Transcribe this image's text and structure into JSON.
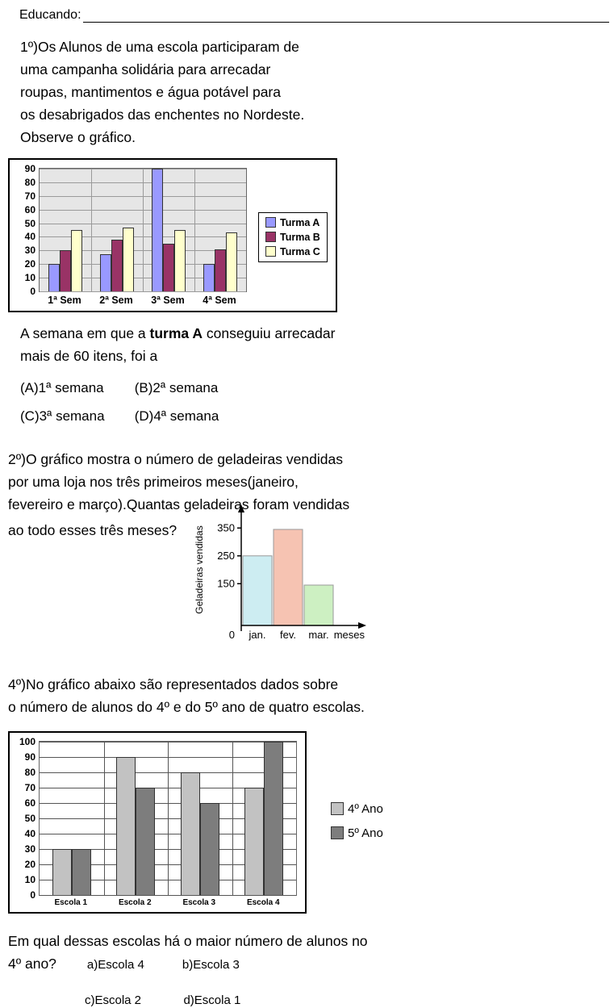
{
  "header": {
    "label": "Educando:"
  },
  "q1": {
    "text": "1º)Os Alunos de uma escola participaram de\numa campanha solidária para arrecadar\nroupas, mantimentos  e água potável para\nos desabrigados das enchentes no Nordeste.\nObserve o gráfico.",
    "question_prefix": "A semana em que a ",
    "question_bold": "turma A",
    "question_suffix": " conseguiu arrecadar\nmais de 60 itens, foi a",
    "options": [
      {
        "label": "(A)1ª semana"
      },
      {
        "label": "(B)2ª semana"
      },
      {
        "label": "(C)3ª semana"
      },
      {
        "label": "(D)4ª semana"
      }
    ]
  },
  "q2": {
    "text": "2º)O gráfico mostra o número de geladeiras vendidas\npor uma loja nos três primeiros meses(janeiro,\nfevereiro e março).Quantas geladeiras foram vendidas",
    "last_line": "ao todo esses três meses?"
  },
  "q4": {
    "text": "4º)No gráfico abaixo são representados dados sobre\no número de alunos do 4º e do 5º ano de quatro  escolas.",
    "question_line1": "Em qual dessas escolas há o maior número de alunos no",
    "question_line2": "4º ano?",
    "options": [
      {
        "label": "a)Escola 4"
      },
      {
        "label": "b)Escola 3"
      },
      {
        "label": "c)Escola 2"
      },
      {
        "label": "d)Escola 1"
      }
    ]
  },
  "chart_data": [
    {
      "type": "bar",
      "title": "",
      "categories": [
        "1ª Sem",
        "2ª Sem",
        "3ª Sem",
        "4ª Sem"
      ],
      "series": [
        {
          "name": "Turma A",
          "color": "#9999ff",
          "values": [
            20,
            27,
            90,
            20
          ]
        },
        {
          "name": "Turma B",
          "color": "#993366",
          "values": [
            30,
            38,
            35,
            31
          ]
        },
        {
          "name": "Turma C",
          "color": "#ffffcc",
          "values": [
            45,
            47,
            45,
            43
          ]
        }
      ],
      "ylim": [
        0,
        90
      ],
      "ytick_step": 10,
      "grid": true,
      "legend_position": "right-inside"
    },
    {
      "type": "bar",
      "categories": [
        "jan.",
        "fev.",
        "mar."
      ],
      "values": [
        250,
        345,
        145
      ],
      "colors": [
        "#cdedf2",
        "#f6c3b2",
        "#cdf0c2"
      ],
      "yticks": [
        150,
        250,
        350
      ],
      "ylim": [
        0,
        400
      ],
      "ylabel": "Geladeiras vendidas",
      "xlabel": "meses",
      "origin_label": "0",
      "grid": false,
      "legend_position": "none"
    },
    {
      "type": "bar",
      "categories": [
        "Escola 1",
        "Escola 2",
        "Escola 3",
        "Escola 4"
      ],
      "series": [
        {
          "name": "4º Ano",
          "color": "#c2c2c2",
          "values": [
            30,
            90,
            80,
            70
          ]
        },
        {
          "name": "5º Ano",
          "color": "#7d7d7d",
          "values": [
            30,
            70,
            60,
            100
          ]
        }
      ],
      "ylim": [
        0,
        100
      ],
      "ytick_step": 10,
      "grid": true,
      "legend_position": "right-outside"
    }
  ]
}
